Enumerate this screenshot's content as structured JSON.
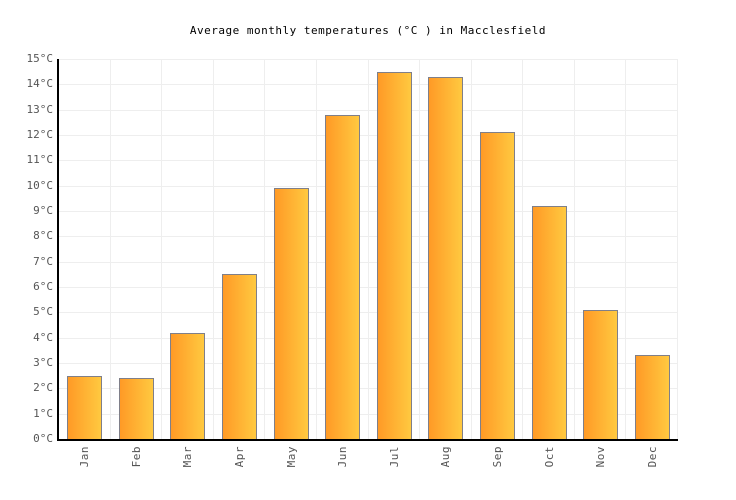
{
  "chart_data": {
    "type": "bar",
    "title": "Average monthly temperatures (°C ) in Macclesfield",
    "categories": [
      "Jan",
      "Feb",
      "Mar",
      "Apr",
      "May",
      "Jun",
      "Jul",
      "Aug",
      "Sep",
      "Oct",
      "Nov",
      "Dec"
    ],
    "values": [
      2.5,
      2.4,
      4.2,
      6.5,
      9.9,
      12.8,
      14.5,
      14.3,
      12.1,
      9.2,
      5.1,
      3.3
    ],
    "unit": "°C",
    "xlabel": "",
    "ylabel": "",
    "ylim": [
      0,
      15
    ],
    "ytick_step": 1,
    "ytick_suffix": "°C",
    "grid": true,
    "legend": false,
    "colors": {
      "bar_gradient_left": "#ff9a26",
      "bar_gradient_right": "#ffc940",
      "bar_border": "#7f7f89",
      "gridline": "#eeeeee",
      "axis": "#000000",
      "tick_label": "#555555",
      "title": "#000000",
      "background": "#ffffff"
    }
  }
}
